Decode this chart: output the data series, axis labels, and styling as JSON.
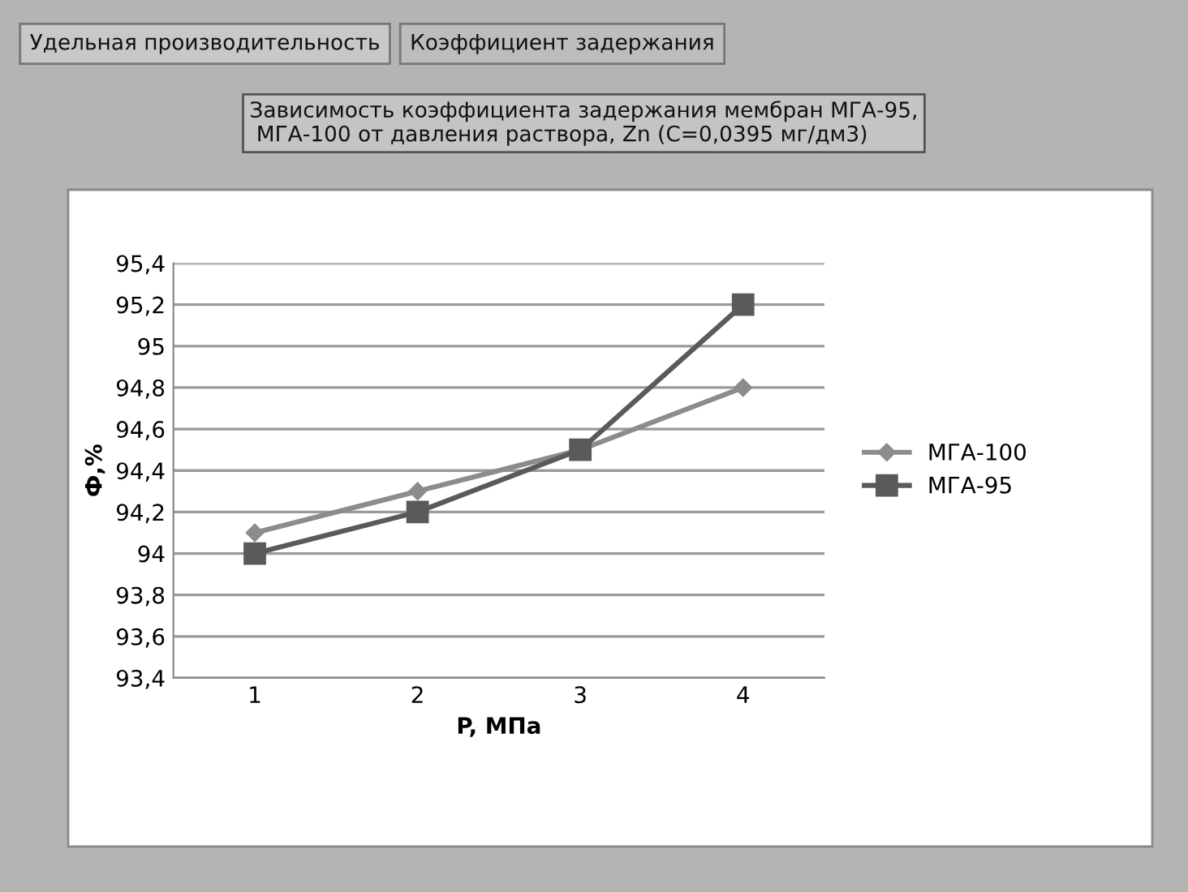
{
  "chart_data": {
    "type": "line",
    "title": "Зависимость коэффициента задержания мембран МГА-95,\n МГА-100 от давления раствора, Zn (C=0,0395 мг/дм3)",
    "annotations": [
      "Удельная производительность",
      "Коэффициент задержания"
    ],
    "categories": [
      "1",
      "2",
      "3",
      "4"
    ],
    "xlabel": "P, МПа",
    "ylabel": "Ф,%",
    "series": [
      {
        "name": "МГА-100",
        "color": "#8c8c8c",
        "marker": "diamond",
        "values": [
          94.1,
          94.3,
          94.5,
          94.8
        ]
      },
      {
        "name": "МГА-95",
        "color": "#5a5a5a",
        "marker": "square",
        "values": [
          94.0,
          94.2,
          94.5,
          95.2
        ]
      }
    ],
    "ylim": [
      93.4,
      95.4
    ],
    "yticks": [
      {
        "value": 93.4,
        "label": "93,4"
      },
      {
        "value": 93.6,
        "label": "93,6"
      },
      {
        "value": 93.8,
        "label": "93,8"
      },
      94,
      {
        "value": 94.2,
        "label": "94,2"
      },
      {
        "value": 94.4,
        "label": "94,4"
      },
      {
        "value": 94.6,
        "label": "94,6"
      },
      {
        "value": 94.8,
        "label": "94,8"
      },
      95,
      {
        "value": 95.2,
        "label": "95,2"
      },
      {
        "value": 95.4,
        "label": "95,4"
      }
    ],
    "grid": "y",
    "legend": "right"
  }
}
